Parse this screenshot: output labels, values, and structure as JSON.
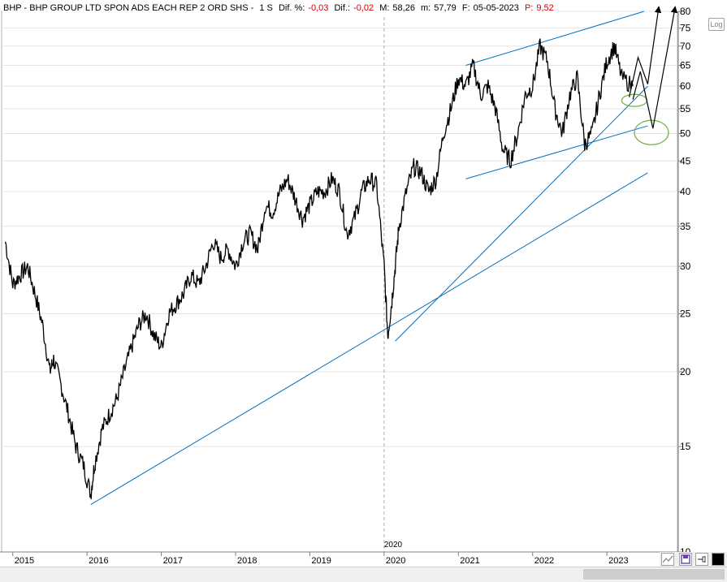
{
  "header": {
    "symbol": "BHP - BHP GROUP LTD SPON ADS EACH REP 2 ORD SHS -",
    "period": "1 S",
    "dif_pct_label": "Dif. %:",
    "dif_pct_value": "-0,03",
    "dif_label": "Dif.:",
    "dif_value": "-0,02",
    "max_label": "M:",
    "max_value": "58,26",
    "min_label": "m:",
    "min_value": "57,79",
    "date_label": "F:",
    "date_value": "05-05-2023",
    "p_label": "P:",
    "p_value": "9,52"
  },
  "scale_toggle": "Log",
  "toolbar": {
    "chart_icon": "line-chart-icon",
    "save_icon": "save-icon",
    "pin_icon": "pin-icon",
    "color_icon": "color-swatch-icon"
  },
  "colors": {
    "trendline": "#0070c0",
    "arrow": "#000000",
    "ellipse": "#70ad47",
    "price": "#000000",
    "grid": "#e4e4e4"
  },
  "chart_data": {
    "type": "line",
    "scale": "log",
    "ylim": [
      10,
      80
    ],
    "y_ticks": [
      10,
      15,
      20,
      25,
      30,
      35,
      40,
      45,
      50,
      55,
      60,
      65,
      70,
      75,
      80
    ],
    "y_tick_labels": [
      "10",
      "15",
      "20",
      "25",
      "30",
      "35",
      "40",
      "45",
      "50",
      "55",
      "60",
      "65",
      "70",
      "75",
      "80"
    ],
    "x_ticks": [
      2015,
      2016,
      2017,
      2018,
      2019,
      2020,
      2021,
      2022,
      2023
    ],
    "x_tick_labels": [
      "2015",
      "2016",
      "2017",
      "2018",
      "2019",
      "2020",
      "2021",
      "2022",
      "2023"
    ],
    "xlim": [
      2014.85,
      2023.95
    ],
    "marker_line": {
      "x": 2020.0,
      "label": "2020"
    },
    "grid": true,
    "x": [
      2014.9,
      2015.0,
      2015.1,
      2015.2,
      2015.3,
      2015.4,
      2015.5,
      2015.55,
      2015.65,
      2015.75,
      2015.85,
      2015.95,
      2016.05,
      2016.1,
      2016.2,
      2016.3,
      2016.4,
      2016.5,
      2016.6,
      2016.7,
      2016.8,
      2016.9,
      2017.0,
      2017.1,
      2017.2,
      2017.3,
      2017.4,
      2017.5,
      2017.6,
      2017.7,
      2017.8,
      2017.9,
      2018.0,
      2018.1,
      2018.2,
      2018.3,
      2018.4,
      2018.5,
      2018.6,
      2018.7,
      2018.8,
      2018.9,
      2019.0,
      2019.1,
      2019.2,
      2019.3,
      2019.4,
      2019.5,
      2019.6,
      2019.7,
      2019.8,
      2019.9,
      2020.0,
      2020.05,
      2020.1,
      2020.15,
      2020.2,
      2020.3,
      2020.4,
      2020.5,
      2020.6,
      2020.7,
      2020.8,
      2020.9,
      2021.0,
      2021.1,
      2021.2,
      2021.3,
      2021.4,
      2021.5,
      2021.6,
      2021.7,
      2021.8,
      2021.9,
      2022.0,
      2022.1,
      2022.2,
      2022.3,
      2022.4,
      2022.5,
      2022.6,
      2022.7,
      2022.8,
      2022.9,
      2023.0,
      2023.1,
      2023.2,
      2023.35
    ],
    "values": [
      33,
      28,
      29,
      30,
      27,
      24,
      20,
      21,
      19,
      17,
      15,
      14,
      12.5,
      14,
      16,
      17,
      18,
      20,
      22,
      24,
      25,
      23,
      22,
      25,
      26,
      27,
      29,
      28,
      30,
      33,
      31,
      32,
      30,
      33,
      34,
      32,
      38,
      37,
      40,
      42,
      39,
      36,
      38,
      40,
      40,
      42,
      40,
      34,
      36,
      40,
      42,
      41,
      30,
      23,
      26,
      30,
      35,
      40,
      44,
      43,
      40,
      42,
      50,
      55,
      62,
      60,
      65,
      58,
      60,
      55,
      47,
      45,
      50,
      58,
      60,
      70,
      66,
      55,
      50,
      58,
      62,
      48,
      50,
      58,
      66,
      70,
      62,
      60
    ],
    "annotations": {
      "trendlines": [
        {
          "from": [
            2016.05,
            12.0
          ],
          "to": [
            2023.55,
            43.0
          ]
        },
        {
          "from": [
            2020.15,
            22.5
          ],
          "to": [
            2023.55,
            60.0
          ]
        },
        {
          "from": [
            2021.1,
            65.0
          ],
          "to": [
            2023.5,
            80.0
          ]
        },
        {
          "from": [
            2021.1,
            42.0
          ],
          "to": [
            2023.55,
            51.5
          ]
        }
      ],
      "arrows": [
        {
          "points": [
            [
              2023.3,
              57.5
            ],
            [
              2023.42,
              67.0
            ],
            [
              2023.55,
              60.5
            ],
            [
              2023.7,
              81.5
            ]
          ]
        },
        {
          "points": [
            [
              2023.35,
              57.0
            ],
            [
              2023.45,
              63.5
            ],
            [
              2023.62,
              51.0
            ],
            [
              2023.92,
              81.5
            ]
          ]
        }
      ],
      "ellipses": [
        {
          "cx": 2023.37,
          "cy": 56.8,
          "rx_years": 0.17,
          "ry_value": 1.3
        },
        {
          "cx": 2023.6,
          "cy": 50.2,
          "rx_years": 0.23,
          "ry_value": 2.3
        }
      ]
    }
  }
}
